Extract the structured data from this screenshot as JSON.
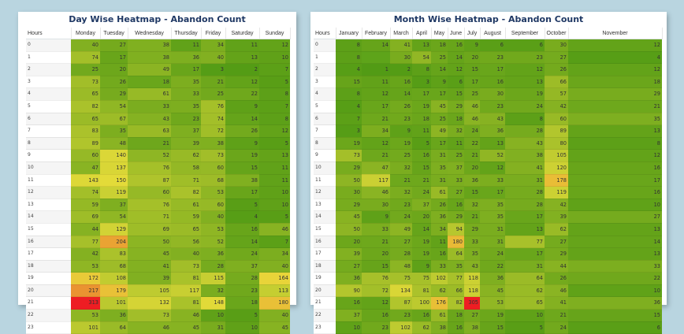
{
  "chart_data": [
    {
      "type": "heatmap",
      "title": "Day Wise Heatmap - Abandon Count",
      "row_header": "Hours",
      "rows": [
        "0",
        "1",
        "2",
        "3",
        "4",
        "5",
        "6",
        "7",
        "8",
        "9",
        "10",
        "11",
        "12",
        "13",
        "14",
        "15",
        "16",
        "17",
        "18",
        "19",
        "20",
        "21",
        "22",
        "23"
      ],
      "columns": [
        "Monday",
        "Tuesday",
        "Wednesday",
        "Thursday",
        "Friday",
        "Saturday",
        "Sunday"
      ],
      "values": [
        [
          40,
          27,
          38,
          11,
          34,
          11,
          12
        ],
        [
          74,
          17,
          38,
          36,
          40,
          13,
          10
        ],
        [
          25,
          20,
          49,
          17,
          3,
          2,
          7
        ],
        [
          73,
          26,
          18,
          35,
          21,
          12,
          5
        ],
        [
          65,
          29,
          61,
          33,
          25,
          22,
          8
        ],
        [
          82,
          54,
          33,
          35,
          76,
          9,
          7
        ],
        [
          65,
          67,
          43,
          23,
          74,
          14,
          8
        ],
        [
          83,
          35,
          63,
          37,
          72,
          26,
          12
        ],
        [
          89,
          48,
          21,
          39,
          38,
          9,
          5
        ],
        [
          60,
          140,
          52,
          62,
          73,
          19,
          13
        ],
        [
          47,
          137,
          76,
          58,
          60,
          15,
          11
        ],
        [
          143,
          150,
          87,
          71,
          68,
          38,
          11
        ],
        [
          74,
          119,
          60,
          82,
          53,
          17,
          10
        ],
        [
          59,
          37,
          76,
          61,
          60,
          5,
          10
        ],
        [
          69,
          54,
          71,
          59,
          40,
          4,
          5
        ],
        [
          44,
          129,
          69,
          65,
          53,
          16,
          46
        ],
        [
          77,
          204,
          50,
          56,
          52,
          14,
          7
        ],
        [
          42,
          83,
          45,
          40,
          36,
          24,
          34
        ],
        [
          53,
          68,
          41,
          73,
          28,
          37,
          40
        ],
        [
          172,
          108,
          39,
          81,
          115,
          28,
          164
        ],
        [
          217,
          179,
          105,
          117,
          32,
          23,
          113
        ],
        [
          313,
          101,
          132,
          81,
          148,
          18,
          180
        ],
        [
          53,
          36,
          73,
          46,
          10,
          5,
          40
        ],
        [
          101,
          64,
          46,
          45,
          31,
          10,
          45
        ]
      ],
      "color_scale": {
        "low": "#4f9a14",
        "mid": "#e8dd3a",
        "high": "#ee1d23",
        "max": 313
      }
    },
    {
      "type": "heatmap",
      "title": "Month Wise Heatmap - Abandon Count",
      "row_header": "Hours",
      "rows": [
        "0",
        "1",
        "2",
        "3",
        "4",
        "5",
        "6",
        "7",
        "8",
        "9",
        "10",
        "11",
        "12",
        "13",
        "14",
        "15",
        "16",
        "17",
        "18",
        "19",
        "20",
        "21",
        "22",
        "23"
      ],
      "columns": [
        "January",
        "February",
        "March",
        "April",
        "May",
        "June",
        "July",
        "August",
        "September",
        "October",
        "November"
      ],
      "values": [
        [
          8,
          14,
          41,
          13,
          18,
          16,
          9,
          6,
          6,
          30,
          12
        ],
        [
          8,
          null,
          30,
          54,
          25,
          14,
          20,
          23,
          23,
          27,
          4
        ],
        [
          4,
          1,
          2,
          8,
          14,
          12,
          15,
          17,
          12,
          26,
          12
        ],
        [
          15,
          11,
          16,
          3,
          9,
          6,
          17,
          16,
          13,
          66,
          18
        ],
        [
          8,
          12,
          14,
          17,
          17,
          15,
          25,
          30,
          19,
          57,
          29
        ],
        [
          4,
          17,
          26,
          19,
          45,
          29,
          46,
          23,
          24,
          42,
          21
        ],
        [
          7,
          21,
          23,
          18,
          25,
          18,
          46,
          43,
          8,
          60,
          35
        ],
        [
          3,
          34,
          9,
          11,
          49,
          32,
          24,
          36,
          28,
          89,
          13
        ],
        [
          19,
          12,
          19,
          5,
          17,
          11,
          22,
          13,
          43,
          80,
          8
        ],
        [
          73,
          21,
          25,
          16,
          31,
          25,
          21,
          52,
          38,
          105,
          12
        ],
        [
          29,
          47,
          32,
          15,
          35,
          37,
          20,
          12,
          41,
          120,
          16
        ],
        [
          50,
          117,
          21,
          21,
          31,
          33,
          36,
          33,
          31,
          178,
          17
        ],
        [
          30,
          46,
          32,
          24,
          61,
          27,
          15,
          17,
          28,
          119,
          16
        ],
        [
          29,
          30,
          23,
          37,
          26,
          16,
          32,
          35,
          28,
          42,
          10
        ],
        [
          45,
          9,
          24,
          20,
          36,
          29,
          21,
          35,
          17,
          39,
          27
        ],
        [
          50,
          33,
          49,
          14,
          34,
          94,
          29,
          31,
          13,
          62,
          13
        ],
        [
          20,
          21,
          27,
          19,
          11,
          180,
          33,
          31,
          77,
          27,
          14
        ],
        [
          39,
          20,
          28,
          19,
          16,
          64,
          35,
          24,
          17,
          29,
          13
        ],
        [
          27,
          15,
          48,
          9,
          33,
          35,
          43,
          22,
          31,
          44,
          33
        ],
        [
          36,
          76,
          75,
          75,
          102,
          77,
          118,
          36,
          64,
          26,
          22
        ],
        [
          90,
          72,
          134,
          81,
          62,
          66,
          118,
          45,
          62,
          46,
          10
        ],
        [
          16,
          12,
          87,
          100,
          176,
          82,
          305,
          53,
          65,
          41,
          36
        ],
        [
          37,
          16,
          23,
          16,
          61,
          18,
          27,
          19,
          10,
          21,
          15
        ],
        [
          10,
          23,
          102,
          62,
          38,
          16,
          38,
          15,
          5,
          24,
          6
        ]
      ],
      "color_scale": {
        "low": "#4f9a14",
        "mid": "#e8dd3a",
        "high": "#ee1d23",
        "max": 305
      }
    }
  ]
}
